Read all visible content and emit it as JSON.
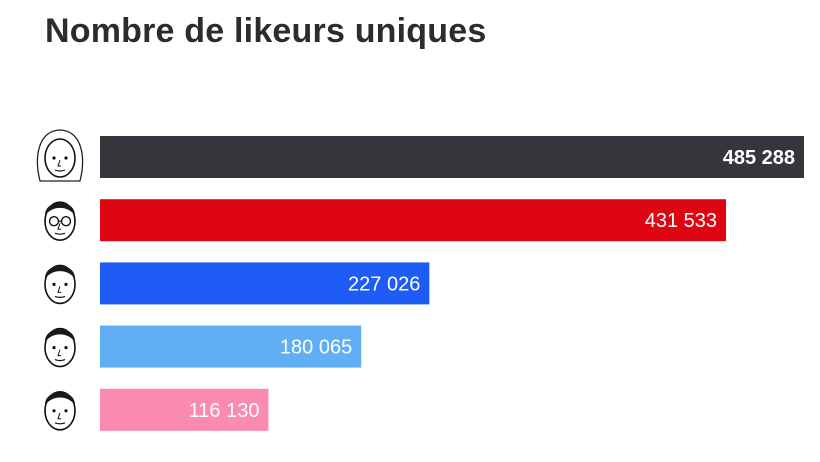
{
  "chart_data": {
    "type": "bar",
    "orientation": "horizontal",
    "title": "Nombre de likeurs uniques",
    "categories": [
      "",
      "",
      "",
      "",
      ""
    ],
    "values": [
      485288,
      431533,
      227026,
      180065,
      116130
    ],
    "value_labels": [
      "485 288",
      "431 533",
      "227 026",
      "180 065",
      "116 130"
    ],
    "colors": [
      "#35353b",
      "#de0612",
      "#1f5cf5",
      "#60aff5",
      "#fb8ab0"
    ],
    "avatar_icons": [
      "caricature-icon",
      "caricature-icon",
      "caricature-icon",
      "caricature-icon",
      "caricature-icon"
    ],
    "xlim": [
      0,
      485288
    ],
    "grid": false,
    "legend": "none"
  }
}
